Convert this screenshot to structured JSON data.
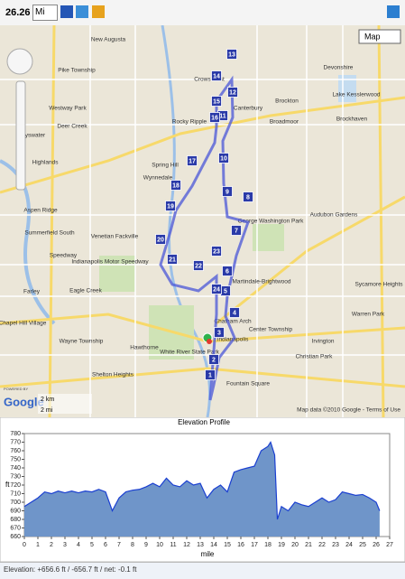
{
  "toolbar": {
    "distance": "26.26",
    "unit": "Mi"
  },
  "map": {
    "type_button": "Map",
    "scale_km": "2 km",
    "scale_mi": "2 mi",
    "logo": "Google",
    "powered_by": "POWERED BY",
    "attribution": "Map data ©2010 Google - Terms of Use",
    "markers": [
      "1",
      "2",
      "3",
      "4",
      "5",
      "6",
      "7",
      "8",
      "9",
      "10",
      "11",
      "12",
      "13",
      "14",
      "15",
      "16",
      "17",
      "18",
      "19",
      "20",
      "21",
      "22",
      "23",
      "24"
    ],
    "places": [
      "New Augusta",
      "Pike Township",
      "Westway Park",
      "Deer Creek",
      "Bayswater",
      "Highlands",
      "Spring Hill",
      "Wynnedale",
      "Rocky Ripple",
      "Crows Nest",
      "Canterbury",
      "Brockton",
      "Broadmoor",
      "Devonshire",
      "Lake Kesslerwood",
      "Brockhaven",
      "Aspen Ridge",
      "Summerfield South",
      "Speedway",
      "Venetian Fackville",
      "Indianapolis Motor Speedway",
      "Eagle Creek",
      "Farley",
      "Martindale-Brightwood",
      "George Washington Park",
      "Audubon Gardens",
      "Sycamore Heights",
      "Warren Park",
      "Center Township",
      "Irvington",
      "Christian Park",
      "Fountain Square",
      "Wayne Township",
      "Chapel Hill Village",
      "Hawthorne",
      "White River State Park",
      "Shelton Heights",
      "Indianapolis",
      "Chatham Arch"
    ]
  },
  "chart_data": {
    "type": "area",
    "title": "Elevation Profile",
    "xlabel": "mile",
    "ylabel": "ft",
    "x": [
      0,
      0.5,
      1,
      1.5,
      2,
      2.5,
      3,
      3.5,
      4,
      4.5,
      5,
      5.5,
      6,
      6.5,
      7,
      7.5,
      8,
      8.5,
      9,
      9.5,
      10,
      10.5,
      11,
      11.5,
      12,
      12.5,
      13,
      13.5,
      14,
      14.5,
      15,
      15.5,
      16,
      16.5,
      17,
      17.5,
      18,
      18.2,
      18.5,
      18.7,
      19,
      19.5,
      20,
      20.5,
      21,
      21.5,
      22,
      22.5,
      23,
      23.5,
      24,
      24.5,
      25,
      25.5,
      26,
      26.26
    ],
    "values": [
      695,
      700,
      705,
      712,
      710,
      713,
      711,
      713,
      711,
      713,
      712,
      715,
      712,
      690,
      705,
      712,
      714,
      715,
      718,
      722,
      718,
      728,
      720,
      718,
      725,
      720,
      722,
      705,
      715,
      720,
      712,
      735,
      738,
      740,
      742,
      760,
      765,
      770,
      755,
      680,
      695,
      690,
      700,
      697,
      695,
      700,
      705,
      700,
      703,
      712,
      710,
      708,
      709,
      705,
      700,
      690
    ],
    "color": "#6f95c9",
    "line_color": "#1a3fd1",
    "xlim": [
      0,
      27
    ],
    "xticks": [
      0,
      1,
      2,
      3,
      4,
      5,
      6,
      7,
      8,
      9,
      10,
      11,
      12,
      13,
      14,
      15,
      16,
      17,
      18,
      19,
      20,
      21,
      22,
      23,
      24,
      25,
      26,
      27
    ],
    "ylim": [
      660,
      780
    ],
    "yticks": [
      660,
      670,
      680,
      690,
      700,
      710,
      720,
      730,
      740,
      750,
      760,
      770,
      780
    ]
  },
  "footer": "Elevation: +656.6 ft / -656.7 ft / net: -0.1 ft"
}
